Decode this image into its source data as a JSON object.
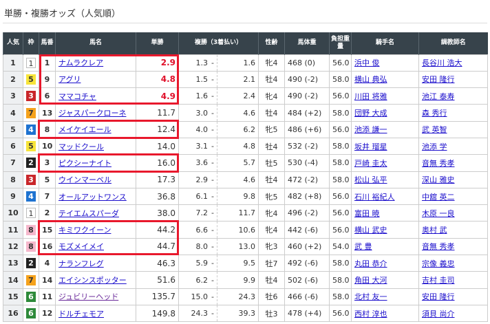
{
  "title": "単勝・複勝オッズ（人気順）",
  "headers": [
    "人気",
    "枠",
    "馬番",
    "馬名",
    "単勝",
    "複勝（3着払い）",
    "性齢",
    "馬体重",
    "負担重量",
    "騎手名",
    "調教師名"
  ],
  "frame_colors": {
    "1": [
      "#ffffff",
      "#333"
    ],
    "2": [
      "#222222",
      "#fff"
    ],
    "3": [
      "#c9262a",
      "#fff"
    ],
    "4": [
      "#1e72d0",
      "#fff"
    ],
    "5": [
      "#f7e43a",
      "#333"
    ],
    "6": [
      "#2e8a3a",
      "#fff"
    ],
    "7": [
      "#f5a21c",
      "#333"
    ],
    "8": [
      "#f5b8cc",
      "#333"
    ]
  },
  "highlight_color": "#e8182c",
  "rows": [
    {
      "pop": "1",
      "waku": "1",
      "num": "1",
      "name": "ナムラクレア",
      "win": "2.9",
      "fl": "1.3",
      "fh": "1.6",
      "sex": "牝4",
      "weight": "468 (0)",
      "load": "56.0",
      "jockey": "浜中 俊",
      "trainer": "長谷川 浩大",
      "fav": true
    },
    {
      "pop": "2",
      "waku": "5",
      "num": "9",
      "name": "アグリ",
      "win": "4.8",
      "fl": "1.5",
      "fh": "2.1",
      "sex": "牡4",
      "weight": "490 (-2)",
      "load": "58.0",
      "jockey": "横山 典弘",
      "trainer": "安田 隆行",
      "fav": true
    },
    {
      "pop": "3",
      "waku": "3",
      "num": "6",
      "name": "ママコチャ",
      "win": "4.9",
      "fl": "1.6",
      "fh": "2.4",
      "sex": "牝4",
      "weight": "490 (-2)",
      "load": "56.0",
      "jockey": "川田 将雅",
      "trainer": "池江 泰寿",
      "fav": true
    },
    {
      "pop": "4",
      "waku": "7",
      "num": "13",
      "name": "ジャスパークローネ",
      "win": "11.7",
      "fl": "3.0",
      "fh": "4.6",
      "sex": "牡4",
      "weight": "484 (+2)",
      "load": "58.0",
      "jockey": "団野 大成",
      "trainer": "森 秀行"
    },
    {
      "pop": "5",
      "waku": "4",
      "num": "8",
      "name": "メイケイエール",
      "win": "12.4",
      "fl": "4.0",
      "fh": "6.2",
      "sex": "牝5",
      "weight": "486 (+6)",
      "load": "56.0",
      "jockey": "池添 謙一",
      "trainer": "武 英智"
    },
    {
      "pop": "6",
      "waku": "5",
      "num": "10",
      "name": "マッドクール",
      "win": "14.0",
      "fl": "3.1",
      "fh": "4.8",
      "sex": "牡4",
      "weight": "532 (-2)",
      "load": "58.0",
      "jockey": "坂井 瑠星",
      "trainer": "池添 学"
    },
    {
      "pop": "7",
      "waku": "2",
      "num": "3",
      "name": "ピクシーナイト",
      "win": "16.0",
      "fl": "3.6",
      "fh": "5.7",
      "sex": "牡5",
      "weight": "530 (-4)",
      "load": "58.0",
      "jockey": "戸崎 圭太",
      "trainer": "音無 秀孝"
    },
    {
      "pop": "8",
      "waku": "3",
      "num": "5",
      "name": "ウインマーベル",
      "win": "17.3",
      "fl": "2.9",
      "fh": "4.6",
      "sex": "牡4",
      "weight": "472 (-2)",
      "load": "58.0",
      "jockey": "松山 弘平",
      "trainer": "深山 雅史"
    },
    {
      "pop": "9",
      "waku": "4",
      "num": "7",
      "name": "オールアットワンス",
      "win": "36.8",
      "fl": "6.1",
      "fh": "9.8",
      "sex": "牝5",
      "weight": "482 (+8)",
      "load": "56.0",
      "jockey": "石川 裕紀人",
      "trainer": "中舘 英二"
    },
    {
      "pop": "10",
      "waku": "1",
      "num": "2",
      "name": "テイエムスパーダ",
      "win": "38.0",
      "fl": "7.2",
      "fh": "11.7",
      "sex": "牝4",
      "weight": "496 (-2)",
      "load": "56.0",
      "jockey": "富田 暁",
      "trainer": "木原 一良"
    },
    {
      "pop": "11",
      "waku": "8",
      "num": "15",
      "name": "キミワクイーン",
      "win": "44.2",
      "fl": "6.6",
      "fh": "10.6",
      "sex": "牝4",
      "weight": "442 (-6)",
      "load": "56.0",
      "jockey": "横山 武史",
      "trainer": "奥村 武"
    },
    {
      "pop": "12",
      "waku": "8",
      "num": "16",
      "name": "モズメイメイ",
      "win": "44.7",
      "fl": "8.0",
      "fh": "13.0",
      "sex": "牝3",
      "weight": "460 (+2)",
      "load": "54.0",
      "jockey": "武 豊",
      "trainer": "音無 秀孝"
    },
    {
      "pop": "13",
      "waku": "2",
      "num": "4",
      "name": "ナランフレグ",
      "win": "46.3",
      "fl": "5.9",
      "fh": "9.5",
      "sex": "牡7",
      "weight": "492 (-6)",
      "load": "58.0",
      "jockey": "丸田 恭介",
      "trainer": "宗像 義忠"
    },
    {
      "pop": "14",
      "waku": "7",
      "num": "14",
      "name": "エイシンスポッター",
      "win": "51.6",
      "fl": "6.2",
      "fh": "9.9",
      "sex": "牡4",
      "weight": "502 (-6)",
      "load": "58.0",
      "jockey": "角田 大河",
      "trainer": "吉村 圭司"
    },
    {
      "pop": "15",
      "waku": "6",
      "num": "11",
      "name": "ジュビリーヘッド",
      "win": "135.7",
      "fl": "15.0",
      "fh": "24.3",
      "sex": "牡6",
      "weight": "466 (-6)",
      "load": "58.0",
      "jockey": "北村 友一",
      "trainer": "安田 隆行",
      "visited": true
    },
    {
      "pop": "16",
      "waku": "6",
      "num": "12",
      "name": "ドルチェモア",
      "win": "149.8",
      "fl": "24.3",
      "fh": "39.3",
      "sex": "牡3",
      "weight": "478 (+4)",
      "load": "56.0",
      "jockey": "西村 淳也",
      "trainer": "須貝 尚介"
    }
  ],
  "separator": "-"
}
